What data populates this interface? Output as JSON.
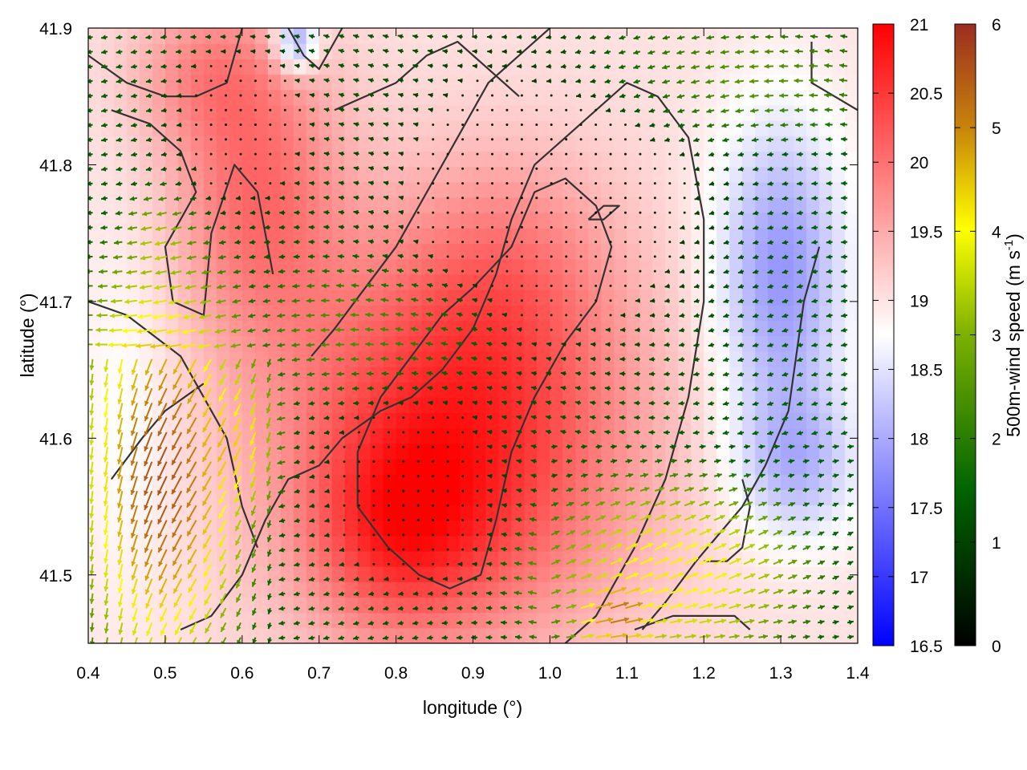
{
  "chart_data": {
    "type": "heatmap",
    "title": "",
    "xlabel": "longitude (°)",
    "ylabel": "latitude (°)",
    "xlim": [
      0.4,
      1.4
    ],
    "ylim": [
      41.45,
      41.9
    ],
    "x_ticks": [
      "0.4",
      "0.5",
      "0.6",
      "0.7",
      "0.8",
      "0.9",
      "1.0",
      "1.1",
      "1.2",
      "1.3",
      "1.4"
    ],
    "y_ticks": [
      "41.5",
      "41.6",
      "41.7",
      "41.8",
      "41.9"
    ],
    "temperature_colorbar": {
      "range": [
        16.5,
        21
      ],
      "ticks": [
        "16.5",
        "17",
        "17.5",
        "18",
        "18.5",
        "19",
        "19.5",
        "20",
        "20.5",
        "21"
      ],
      "label": "",
      "colors": [
        "#0000ff",
        "#ffffff",
        "#ff0000"
      ]
    },
    "wind_colorbar": {
      "range": [
        0,
        6
      ],
      "ticks": [
        "0",
        "1",
        "2",
        "3",
        "4",
        "5",
        "6"
      ],
      "label_main": "500m-wind speed (m s",
      "label_sup": "-1",
      "label_end": ")",
      "colors": [
        "#000000",
        "#006400",
        "#7cb000",
        "#ffff00",
        "#c8860a",
        "#9b2d20"
      ]
    },
    "temperature_regions": [
      {
        "lon": 0.88,
        "lat": 41.6,
        "sx": 0.16,
        "sy": 0.1,
        "delta": 1.7
      },
      {
        "lon": 0.8,
        "lat": 41.53,
        "sx": 0.08,
        "sy": 0.05,
        "delta": 0.8
      },
      {
        "lon": 0.62,
        "lat": 41.78,
        "sx": 0.08,
        "sy": 0.08,
        "delta": 1.0
      },
      {
        "lon": 0.55,
        "lat": 41.87,
        "sx": 0.07,
        "sy": 0.04,
        "delta": 0.6
      },
      {
        "lon": 0.95,
        "lat": 41.73,
        "sx": 0.1,
        "sy": 0.06,
        "delta": 0.5
      },
      {
        "lon": 1.3,
        "lat": 41.72,
        "sx": 0.06,
        "sy": 0.08,
        "delta": -1.2
      },
      {
        "lon": 1.32,
        "lat": 41.58,
        "sx": 0.06,
        "sy": 0.04,
        "delta": -0.8
      },
      {
        "lon": 0.67,
        "lat": 41.89,
        "sx": 0.02,
        "sy": 0.015,
        "delta": -1.3
      },
      {
        "lon": 0.45,
        "lat": 41.62,
        "sx": 0.05,
        "sy": 0.1,
        "delta": -0.3
      }
    ],
    "temperature_base": 19.0,
    "wind_regions": [
      {
        "lon": 0.5,
        "lat": 41.58,
        "sx": 0.09,
        "sy": 0.12,
        "speed": 5.5
      },
      {
        "lon": 0.58,
        "lat": 41.6,
        "sx": 0.06,
        "sy": 0.06,
        "speed": 4.3
      },
      {
        "lon": 1.15,
        "lat": 41.5,
        "sx": 0.15,
        "sy": 0.06,
        "speed": 3.8
      },
      {
        "lon": 1.08,
        "lat": 41.47,
        "sx": 0.05,
        "sy": 0.03,
        "speed": 5.0
      },
      {
        "lon": 0.78,
        "lat": 41.68,
        "sx": 0.18,
        "sy": 0.06,
        "speed": 2.2
      },
      {
        "lon": 1.2,
        "lat": 41.86,
        "sx": 0.25,
        "sy": 0.05,
        "speed": 2.3
      },
      {
        "lon": 0.5,
        "lat": 41.74,
        "sx": 0.05,
        "sy": 0.04,
        "speed": 3.0
      }
    ],
    "wind_base_speed": 1.2,
    "calm_zones": [
      {
        "lon": 1.0,
        "lat": 41.78,
        "sx": 0.14,
        "sy": 0.08
      },
      {
        "lon": 0.82,
        "lat": 41.56,
        "sx": 0.08,
        "sy": 0.05
      },
      {
        "lon": 0.6,
        "lat": 41.83,
        "sx": 0.06,
        "sy": 0.04
      }
    ],
    "contour_lines": [
      [
        [
          0.4,
          41.88
        ],
        [
          0.45,
          41.86
        ],
        [
          0.5,
          41.85
        ],
        [
          0.54,
          41.85
        ],
        [
          0.58,
          41.86
        ],
        [
          0.6,
          41.9
        ]
      ],
      [
        [
          0.43,
          41.84
        ],
        [
          0.48,
          41.83
        ],
        [
          0.52,
          41.81
        ],
        [
          0.54,
          41.78
        ],
        [
          0.52,
          41.76
        ],
        [
          0.5,
          41.74
        ],
        [
          0.51,
          41.7
        ],
        [
          0.55,
          41.69
        ],
        [
          0.56,
          41.75
        ],
        [
          0.59,
          41.8
        ],
        [
          0.62,
          41.78
        ],
        [
          0.64,
          41.72
        ]
      ],
      [
        [
          0.4,
          41.7
        ],
        [
          0.45,
          41.69
        ],
        [
          0.52,
          41.66
        ],
        [
          0.56,
          41.62
        ],
        [
          0.58,
          41.6
        ],
        [
          0.6,
          41.55
        ],
        [
          0.62,
          41.52
        ]
      ],
      [
        [
          0.43,
          41.57
        ],
        [
          0.47,
          41.6
        ],
        [
          0.5,
          41.62
        ],
        [
          0.55,
          41.64
        ]
      ],
      [
        [
          0.52,
          41.46
        ],
        [
          0.56,
          41.47
        ],
        [
          0.6,
          41.5
        ],
        [
          0.63,
          41.54
        ],
        [
          0.66,
          41.57
        ],
        [
          0.7,
          41.58
        ],
        [
          0.73,
          41.6
        ],
        [
          0.78,
          41.62
        ],
        [
          0.82,
          41.63
        ],
        [
          0.86,
          41.65
        ],
        [
          0.9,
          41.68
        ],
        [
          0.93,
          41.72
        ],
        [
          0.95,
          41.76
        ],
        [
          0.98,
          41.8
        ],
        [
          1.02,
          41.82
        ],
        [
          1.06,
          41.84
        ],
        [
          1.1,
          41.86
        ],
        [
          1.14,
          41.85
        ],
        [
          1.18,
          41.82
        ],
        [
          1.2,
          41.76
        ],
        [
          1.2,
          41.7
        ],
        [
          1.18,
          41.63
        ],
        [
          1.15,
          41.57
        ],
        [
          1.11,
          41.52
        ],
        [
          1.06,
          41.47
        ],
        [
          1.02,
          41.45
        ]
      ],
      [
        [
          0.69,
          41.66
        ],
        [
          0.72,
          41.68
        ],
        [
          0.76,
          41.71
        ],
        [
          0.8,
          41.74
        ],
        [
          0.84,
          41.78
        ],
        [
          0.88,
          41.82
        ],
        [
          0.92,
          41.86
        ],
        [
          0.96,
          41.88
        ],
        [
          1.0,
          41.9
        ]
      ],
      [
        [
          0.75,
          41.55
        ],
        [
          0.79,
          41.52
        ],
        [
          0.83,
          41.5
        ],
        [
          0.87,
          41.49
        ],
        [
          0.91,
          41.5
        ],
        [
          0.93,
          41.54
        ],
        [
          0.95,
          41.59
        ],
        [
          0.98,
          41.63
        ],
        [
          1.02,
          41.67
        ],
        [
          1.06,
          41.7
        ],
        [
          1.08,
          41.74
        ],
        [
          1.06,
          41.77
        ],
        [
          1.02,
          41.79
        ],
        [
          0.98,
          41.78
        ],
        [
          0.95,
          41.74
        ],
        [
          0.9,
          41.71
        ],
        [
          0.86,
          41.69
        ],
        [
          0.82,
          41.66
        ],
        [
          0.78,
          41.63
        ],
        [
          0.75,
          41.59
        ],
        [
          0.75,
          41.55
        ]
      ],
      [
        [
          0.66,
          41.9
        ],
        [
          0.68,
          41.88
        ],
        [
          0.7,
          41.87
        ],
        [
          0.72,
          41.89
        ],
        [
          0.73,
          41.9
        ]
      ],
      [
        [
          0.72,
          41.84
        ],
        [
          0.76,
          41.85
        ],
        [
          0.8,
          41.86
        ],
        [
          0.84,
          41.88
        ],
        [
          0.88,
          41.89
        ],
        [
          0.92,
          41.87
        ],
        [
          0.96,
          41.85
        ]
      ],
      [
        [
          1.34,
          41.89
        ],
        [
          1.34,
          41.86
        ],
        [
          1.37,
          41.85
        ],
        [
          1.4,
          41.84
        ]
      ],
      [
        [
          1.35,
          41.74
        ],
        [
          1.33,
          41.7
        ],
        [
          1.32,
          41.66
        ],
        [
          1.31,
          41.62
        ],
        [
          1.28,
          41.58
        ],
        [
          1.25,
          41.55
        ],
        [
          1.22,
          41.53
        ],
        [
          1.19,
          41.51
        ],
        [
          1.15,
          41.48
        ],
        [
          1.12,
          41.46
        ]
      ],
      [
        [
          1.2,
          41.51
        ],
        [
          1.23,
          41.51
        ],
        [
          1.25,
          41.52
        ],
        [
          1.26,
          41.55
        ],
        [
          1.25,
          41.57
        ]
      ],
      [
        [
          1.11,
          41.46
        ],
        [
          1.16,
          41.47
        ],
        [
          1.2,
          41.47
        ],
        [
          1.24,
          41.47
        ],
        [
          1.26,
          41.46
        ]
      ],
      [
        [
          1.05,
          41.76
        ],
        [
          1.07,
          41.76
        ],
        [
          1.09,
          41.77
        ],
        [
          1.07,
          41.77
        ],
        [
          1.05,
          41.76
        ]
      ]
    ]
  }
}
